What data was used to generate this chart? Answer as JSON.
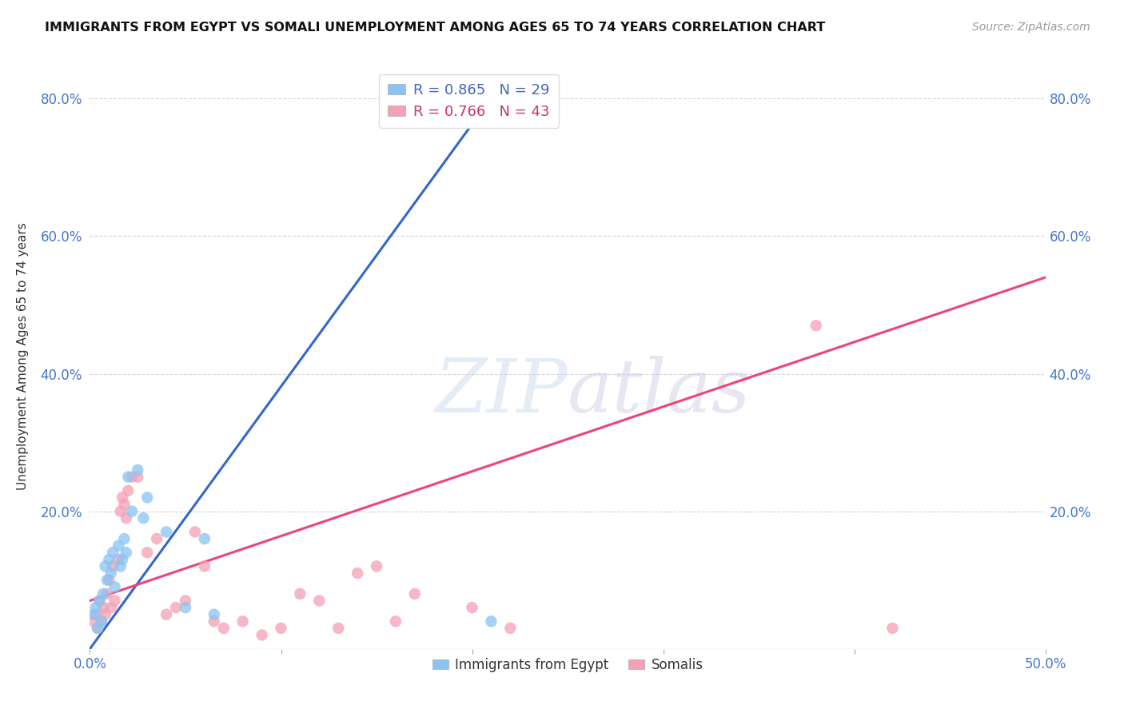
{
  "title": "IMMIGRANTS FROM EGYPT VS SOMALI UNEMPLOYMENT AMONG AGES 65 TO 74 YEARS CORRELATION CHART",
  "source": "Source: ZipAtlas.com",
  "ylabel": "Unemployment Among Ages 65 to 74 years",
  "xlim": [
    0.0,
    0.5
  ],
  "ylim": [
    0.0,
    0.85
  ],
  "xticks": [
    0.0,
    0.1,
    0.2,
    0.3,
    0.4,
    0.5
  ],
  "xticklabels": [
    "0.0%",
    "",
    "",
    "",
    "",
    "50.0%"
  ],
  "yticks": [
    0.0,
    0.2,
    0.4,
    0.6,
    0.8
  ],
  "yticklabels": [
    "",
    "20.0%",
    "40.0%",
    "60.0%",
    "80.0%"
  ],
  "egypt_R": 0.865,
  "egypt_N": 29,
  "somali_R": 0.766,
  "somali_N": 43,
  "egypt_color": "#89C4F4",
  "somali_color": "#F4A0B5",
  "egypt_line_color": "#3366CC",
  "somali_line_color": "#EE4477",
  "egypt_x": [
    0.002,
    0.003,
    0.004,
    0.005,
    0.006,
    0.007,
    0.008,
    0.009,
    0.01,
    0.011,
    0.012,
    0.013,
    0.015,
    0.016,
    0.017,
    0.018,
    0.019,
    0.02,
    0.022,
    0.025,
    0.028,
    0.03,
    0.04,
    0.05,
    0.06,
    0.065,
    0.17,
    0.195,
    0.21
  ],
  "egypt_y": [
    0.05,
    0.06,
    0.03,
    0.07,
    0.04,
    0.08,
    0.12,
    0.1,
    0.13,
    0.11,
    0.14,
    0.09,
    0.15,
    0.12,
    0.13,
    0.16,
    0.14,
    0.25,
    0.2,
    0.26,
    0.19,
    0.22,
    0.17,
    0.06,
    0.16,
    0.05,
    0.79,
    0.79,
    0.04
  ],
  "somali_x": [
    0.002,
    0.003,
    0.004,
    0.005,
    0.006,
    0.007,
    0.008,
    0.009,
    0.01,
    0.011,
    0.012,
    0.013,
    0.015,
    0.016,
    0.017,
    0.018,
    0.019,
    0.02,
    0.022,
    0.025,
    0.03,
    0.035,
    0.04,
    0.045,
    0.05,
    0.055,
    0.06,
    0.065,
    0.07,
    0.08,
    0.09,
    0.1,
    0.11,
    0.12,
    0.13,
    0.14,
    0.15,
    0.16,
    0.17,
    0.2,
    0.22,
    0.38,
    0.42
  ],
  "somali_y": [
    0.04,
    0.05,
    0.03,
    0.07,
    0.04,
    0.06,
    0.05,
    0.08,
    0.1,
    0.06,
    0.12,
    0.07,
    0.13,
    0.2,
    0.22,
    0.21,
    0.19,
    0.23,
    0.25,
    0.25,
    0.14,
    0.16,
    0.05,
    0.06,
    0.07,
    0.17,
    0.12,
    0.04,
    0.03,
    0.04,
    0.02,
    0.03,
    0.08,
    0.07,
    0.03,
    0.11,
    0.12,
    0.04,
    0.08,
    0.06,
    0.03,
    0.47,
    0.03
  ],
  "egypt_line_x": [
    0.0,
    0.215
  ],
  "egypt_line_y": [
    0.0,
    0.82
  ],
  "somali_line_x": [
    0.0,
    0.5
  ],
  "somali_line_y": [
    0.07,
    0.54
  ]
}
